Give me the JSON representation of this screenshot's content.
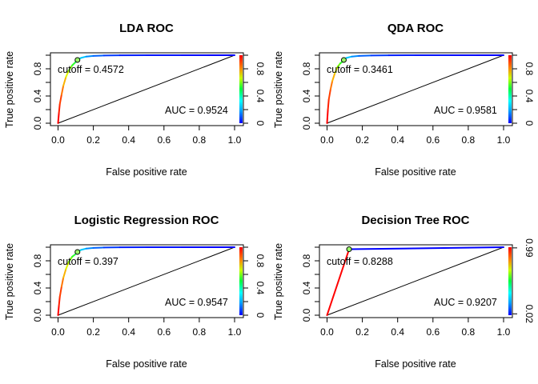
{
  "chart_data": [
    {
      "type": "line",
      "title": "LDA ROC",
      "xlabel": "False positive rate",
      "ylabel": "True positive rate",
      "xlim": [
        0,
        1
      ],
      "ylim": [
        0,
        1
      ],
      "xticks": [
        "0.0",
        "0.2",
        "0.4",
        "0.6",
        "0.8",
        "1.0"
      ],
      "yticks": [
        "0.0",
        "0.4",
        "0.8"
      ],
      "colorbar_ticks": [
        "0",
        "0.4",
        "0.8"
      ],
      "cutoff_label": "cutoff =  0.4572",
      "auc_label": "AUC =  0.9524",
      "cutoff_point": {
        "x": 0.11,
        "y": 0.93
      },
      "diagonal": true,
      "series": [
        {
          "x": [
            0,
            0.005,
            0.01,
            0.02,
            0.03,
            0.045,
            0.06,
            0.08,
            0.1,
            0.11,
            0.13,
            0.16,
            0.2,
            0.26,
            0.35,
            0.5,
            0.7,
            0.85,
            1.0
          ],
          "y": [
            0,
            0.15,
            0.28,
            0.42,
            0.55,
            0.68,
            0.77,
            0.85,
            0.9,
            0.93,
            0.96,
            0.98,
            0.99,
            0.995,
            0.998,
            1.0,
            1.0,
            1.0,
            1.0
          ]
        }
      ]
    },
    {
      "type": "line",
      "title": "QDA ROC",
      "xlabel": "False positive rate",
      "ylabel": "True positive rate",
      "xlim": [
        0,
        1
      ],
      "ylim": [
        0,
        1
      ],
      "xticks": [
        "0.0",
        "0.2",
        "0.4",
        "0.6",
        "0.8",
        "1.0"
      ],
      "yticks": [
        "0.0",
        "0.4",
        "0.8"
      ],
      "colorbar_ticks": [
        "0",
        "0.4",
        "0.8"
      ],
      "cutoff_label": "cutoff =  0.3461",
      "auc_label": "AUC =  0.9581",
      "cutoff_point": {
        "x": 0.095,
        "y": 0.93
      },
      "diagonal": true,
      "series": [
        {
          "x": [
            0,
            0.005,
            0.01,
            0.02,
            0.03,
            0.045,
            0.06,
            0.075,
            0.09,
            0.095,
            0.11,
            0.14,
            0.18,
            0.25,
            0.35,
            0.5,
            0.7,
            0.85,
            1.0
          ],
          "y": [
            0,
            0.2,
            0.35,
            0.5,
            0.62,
            0.74,
            0.83,
            0.88,
            0.91,
            0.93,
            0.96,
            0.98,
            0.99,
            0.996,
            0.999,
            1.0,
            1.0,
            1.0,
            1.0
          ]
        }
      ]
    },
    {
      "type": "line",
      "title": "Logistic Regression ROC",
      "xlabel": "False positive rate",
      "ylabel": "True positive rate",
      "xlim": [
        0,
        1
      ],
      "ylim": [
        0,
        1
      ],
      "xticks": [
        "0.0",
        "0.2",
        "0.4",
        "0.6",
        "0.8",
        "1.0"
      ],
      "yticks": [
        "0.0",
        "0.4",
        "0.8"
      ],
      "colorbar_ticks": [
        "0",
        "0.4",
        "0.8"
      ],
      "cutoff_label": "cutoff =  0.397",
      "auc_label": "AUC =  0.9547",
      "cutoff_point": {
        "x": 0.11,
        "y": 0.93
      },
      "diagonal": true,
      "series": [
        {
          "x": [
            0,
            0.005,
            0.01,
            0.02,
            0.03,
            0.045,
            0.06,
            0.08,
            0.1,
            0.11,
            0.13,
            0.16,
            0.2,
            0.26,
            0.35,
            0.5,
            0.7,
            0.85,
            1.0
          ],
          "y": [
            0,
            0.14,
            0.27,
            0.42,
            0.55,
            0.68,
            0.78,
            0.86,
            0.9,
            0.93,
            0.96,
            0.98,
            0.99,
            0.995,
            0.998,
            1.0,
            1.0,
            1.0,
            1.0
          ]
        }
      ]
    },
    {
      "type": "line",
      "title": "Decision Tree ROC",
      "xlabel": "False positive rate",
      "ylabel": "True positive rate",
      "xlim": [
        0,
        1
      ],
      "ylim": [
        0,
        1
      ],
      "xticks": [
        "0.0",
        "0.2",
        "0.4",
        "0.6",
        "0.8",
        "1.0"
      ],
      "yticks": [
        "0.0",
        "0.4",
        "0.8"
      ],
      "colorbar_ticks": [
        "0.02",
        "0.99"
      ],
      "cutoff_label": "cutoff =  0.8288",
      "auc_label": "AUC =  0.9207",
      "cutoff_point": {
        "x": 0.125,
        "y": 0.97
      },
      "diagonal": true,
      "series": [
        {
          "x": [
            0,
            0.125,
            1.0
          ],
          "y": [
            0,
            0.97,
            1.0
          ]
        }
      ]
    }
  ]
}
